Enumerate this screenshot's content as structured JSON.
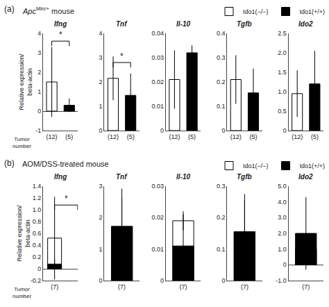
{
  "chart_data": [
    {
      "type": "bar",
      "title": "Ifng",
      "categories": [
        "(12)",
        "(5)"
      ],
      "series": [
        {
          "name": "Ido1(−/−)",
          "color": "white",
          "values": [
            1.5,
            null
          ],
          "errors": [
            1.8,
            null
          ]
        },
        {
          "name": "Ido1(+/+)",
          "color": "black",
          "values": [
            null,
            0.3
          ],
          "errors": [
            null,
            0.35
          ]
        }
      ],
      "ylim": [
        -1,
        4
      ],
      "yticks": [
        -1,
        0,
        1,
        2,
        3,
        4
      ],
      "grid": false,
      "ylabel": "Relative expression/\nbeta-actin",
      "xlabel": "Tumor\nnumber",
      "subtitle": {
        "text": "Apc",
        "superscript": "Min/+",
        "suffix": " mouse"
      },
      "legend": "upper right",
      "annotations": [
        {
          "text": "(a)"
        },
        {
          "text": "*",
          "y": 3.6
        }
      ]
    },
    {
      "type": "bar",
      "title": "Tnf",
      "categories": [
        "(12)",
        "(5)"
      ],
      "series": [
        {
          "name": "Ido1(−/−)",
          "color": "white",
          "values": [
            2.15,
            null
          ],
          "errors": [
            0.9,
            null
          ]
        },
        {
          "name": "Ido1(+/+)",
          "color": "black",
          "values": [
            null,
            1.45
          ],
          "errors": [
            null,
            0.9
          ]
        }
      ],
      "ylim": [
        0,
        4
      ],
      "yticks": [
        0,
        1,
        2,
        3,
        4
      ],
      "grid": false,
      "annotations": [
        {
          "text": "*",
          "y": 2.8
        }
      ]
    },
    {
      "type": "bar",
      "title": "Il-10",
      "categories": [
        "(12)",
        "(5)"
      ],
      "series": [
        {
          "name": "Ido1(−/−)",
          "color": "white",
          "values": [
            0.021,
            null
          ],
          "errors": [
            0.012,
            null
          ]
        },
        {
          "name": "Ido1(+/+)",
          "color": "black",
          "values": [
            null,
            0.032
          ],
          "errors": [
            null,
            0.003
          ]
        }
      ],
      "ylim": [
        0,
        0.04
      ],
      "yticks": [
        0,
        0.01,
        0.02,
        0.03,
        0.04
      ],
      "grid": false
    },
    {
      "type": "bar",
      "title": "Tgfb",
      "categories": [
        "(12)",
        "(5)"
      ],
      "series": [
        {
          "name": "Ido1(−/−)",
          "color": "white",
          "values": [
            0.21,
            null
          ],
          "errors": [
            0.1,
            null
          ]
        },
        {
          "name": "Ido1(+/+)",
          "color": "black",
          "values": [
            null,
            0.155
          ],
          "errors": [
            null,
            0.1
          ]
        }
      ],
      "ylim": [
        0,
        0.4
      ],
      "yticks": [
        0,
        0.1,
        0.2,
        0.3,
        0.4
      ],
      "grid": false
    },
    {
      "type": "bar",
      "title": "Ido2",
      "categories": [
        "(12)",
        "(5)"
      ],
      "series": [
        {
          "name": "Ido1(−/−)",
          "color": "white",
          "values": [
            0.95,
            null
          ],
          "errors": [
            0.6,
            null
          ]
        },
        {
          "name": "Ido1(+/+)",
          "color": "black",
          "values": [
            null,
            1.2
          ],
          "errors": [
            null,
            0.85
          ]
        }
      ],
      "ylim": [
        0,
        2.5
      ],
      "yticks": [
        0,
        0.5,
        {
          "value": 1,
          "label": "1.0"
        },
        1.5,
        {
          "value": 2,
          "label": "2.0"
        },
        2.5
      ],
      "grid": false
    },
    {
      "type": "bar",
      "title": "Ifng",
      "categories": [
        "(7)",
        "(7)"
      ],
      "series": [
        {
          "name": "Ido1(−/−)",
          "color": "white",
          "values": [
            0.52,
            null
          ],
          "errors": [
            0.7,
            null
          ]
        },
        {
          "name": "Ido1(+/+)",
          "color": "black",
          "values": [
            null,
            0.08
          ],
          "errors": [
            null,
            0.09
          ]
        }
      ],
      "ylim": [
        -0.2,
        1.4
      ],
      "yticks": [
        -0.2,
        0,
        0.2,
        0.4,
        0.6,
        0.8,
        {
          "value": 1,
          "label": "1.0"
        },
        1.2,
        1.4
      ],
      "grid": false,
      "ylabel": "Relative expression/\nbeta-actin",
      "xlabel": "Tumor\nnumber",
      "subtitle": "AOM/DSS-treated mouse",
      "legend": "upper right",
      "annotations": [
        {
          "text": "(b)"
        },
        {
          "text": "*",
          "y": 1.08
        }
      ]
    },
    {
      "type": "bar",
      "title": "Tnf",
      "categories": [
        "(7)",
        "(7)"
      ],
      "series": [
        {
          "name": "Ido1(−/−)",
          "color": "white",
          "values": [
            1.72,
            null
          ],
          "errors": [
            0.9,
            null
          ]
        },
        {
          "name": "Ido1(+/+)",
          "color": "black",
          "values": [
            null,
            1.72
          ],
          "errors": [
            null,
            1.2
          ]
        }
      ],
      "ylim": [
        0,
        3
      ],
      "yticks": [
        0,
        1,
        2,
        3
      ],
      "grid": false
    },
    {
      "type": "bar",
      "title": "Il-10",
      "categories": [
        "(7)",
        "(7)"
      ],
      "series": [
        {
          "name": "Ido1(−/−)",
          "color": "white",
          "values": [
            0.019,
            null
          ],
          "errors": [
            0.003,
            null
          ]
        },
        {
          "name": "Ido1(+/+)",
          "color": "black",
          "values": [
            null,
            0.011
          ],
          "errors": [
            null,
            0.01
          ]
        }
      ],
      "ylim": [
        0,
        0.03
      ],
      "yticks": [
        0,
        0.01,
        0.02,
        0.03
      ],
      "grid": false
    },
    {
      "type": "bar",
      "title": "Tgfb",
      "categories": [
        "(7)",
        "(7)"
      ],
      "series": [
        {
          "name": "Ido1(−/−)",
          "color": "white",
          "values": [
            0.155,
            null
          ],
          "errors": [
            0.1,
            null
          ]
        },
        {
          "name": "Ido1(+/+)",
          "color": "black",
          "values": [
            null,
            0.155
          ],
          "errors": [
            null,
            0.12
          ]
        }
      ],
      "ylim": [
        0,
        0.3
      ],
      "yticks": [
        0,
        0.1,
        0.2,
        0.3
      ],
      "grid": false
    },
    {
      "type": "bar",
      "title": "Ido2",
      "categories": [
        "(7)",
        "(7)"
      ],
      "series": [
        {
          "name": "Ido1(−/−)",
          "color": "white",
          "values": [
            1.0,
            null
          ],
          "errors": [
            0.7,
            null
          ]
        },
        {
          "name": "Ido1(+/+)",
          "color": "black",
          "values": [
            null,
            2.0
          ],
          "errors": [
            null,
            2.3
          ]
        }
      ],
      "ylim": [
        -1,
        5
      ],
      "yticks": [
        {
          "value": -1,
          "label": "-1.0"
        },
        0,
        {
          "value": 1,
          "label": "1.0"
        },
        {
          "value": 2,
          "label": "2.0"
        },
        {
          "value": 3,
          "label": "3.0"
        },
        {
          "value": 4,
          "label": "4.0"
        },
        {
          "value": 5,
          "label": "5.0"
        }
      ],
      "grid": false
    }
  ]
}
